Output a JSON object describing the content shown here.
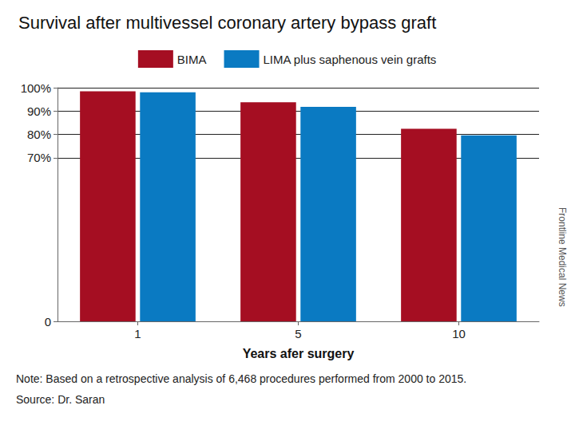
{
  "chart_data": {
    "type": "bar",
    "title": "Survival after multivessel coronary artery bypass graft",
    "x_label": "Years afer surgery",
    "categories": [
      "1",
      "5",
      "10"
    ],
    "series": [
      {
        "name": "BIMA",
        "color": "#a50e22",
        "values": [
          98.5,
          93.8,
          82.4
        ]
      },
      {
        "name": "LIMA plus saphenous vein grafts",
        "color": "#0a7ac2",
        "values": [
          98.0,
          91.8,
          79.6
        ]
      }
    ],
    "ylim": [
      0,
      100
    ],
    "yticks": [
      0,
      {
        "value": 70,
        "label": "70%"
      },
      {
        "value": 80,
        "label": "80%"
      },
      {
        "value": 90,
        "label": "90%"
      },
      {
        "value": 100,
        "label": "100%"
      }
    ],
    "grid": true,
    "legend": "top",
    "annotations": [
      "Note: Based on a retrospective analysis of 6,468 procedures performed from 2000 to 2015.",
      "Source: Dr. Saran",
      "Frontline Medical News"
    ]
  }
}
